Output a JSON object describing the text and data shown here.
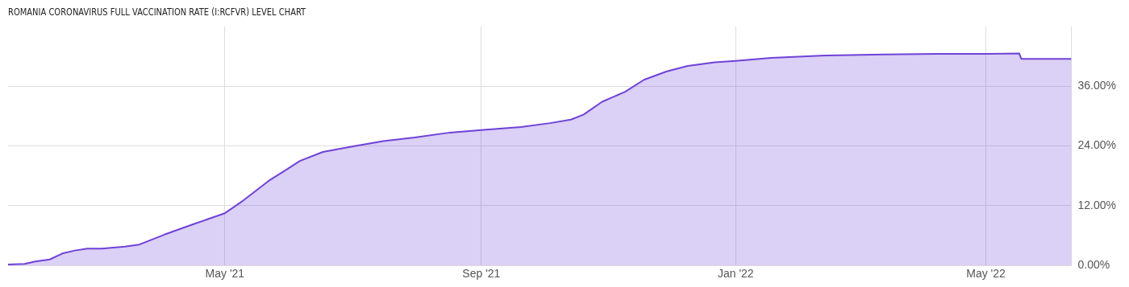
{
  "chart_data": {
    "type": "area",
    "title": "ROMANIA CORONAVIRUS FULL VACCINATION RATE (I:RCFVR) LEVEL CHART",
    "x": [
      "2021-01-17",
      "2021-01-25",
      "2021-01-30",
      "2021-02-06",
      "2021-02-12",
      "2021-02-18",
      "2021-02-24",
      "2021-03-03",
      "2021-03-14",
      "2021-03-21",
      "2021-04-02",
      "2021-04-16",
      "2021-05-01",
      "2021-05-09",
      "2021-05-22",
      "2021-05-30",
      "2021-06-06",
      "2021-06-17",
      "2021-07-01",
      "2021-07-16",
      "2021-07-31",
      "2021-08-17",
      "2021-09-01",
      "2021-09-20",
      "2021-10-04",
      "2021-10-14",
      "2021-10-20",
      "2021-10-29",
      "2021-11-09",
      "2021-11-18",
      "2021-11-29",
      "2021-12-09",
      "2021-12-22",
      "2022-01-01",
      "2022-01-18",
      "2022-02-14",
      "2022-03-13",
      "2022-04-08",
      "2022-05-01",
      "2022-05-17",
      "2022-05-18",
      "2022-06-11"
    ],
    "series": [
      {
        "color": "#6f42d8",
        "values": [
          0.2,
          0.3,
          0.8,
          1.2,
          2.4,
          3.0,
          3.4,
          3.4,
          3.8,
          4.2,
          6.2,
          8.3,
          10.5,
          12.8,
          17.0,
          19.1,
          21.0,
          22.8,
          23.9,
          25.0,
          25.7,
          26.7,
          27.2,
          27.8,
          28.6,
          29.3,
          30.3,
          32.9,
          34.9,
          37.3,
          39.0,
          40.1,
          40.8,
          41.1,
          41.7,
          42.2,
          42.4,
          42.5,
          42.5,
          42.6,
          41.5,
          41.5
        ]
      }
    ],
    "xlim": [
      "2021-01-17",
      "2022-06-11"
    ],
    "xticks": [
      {
        "value": "2021-05-01",
        "label": "May '21"
      },
      {
        "value": "2021-09-01",
        "label": "Sep '21"
      },
      {
        "value": "2022-01-01",
        "label": "Jan '22"
      },
      {
        "value": "2022-05-01",
        "label": "May '22"
      }
    ],
    "ylim": [
      0,
      48
    ],
    "yticks": [
      {
        "value": 0,
        "label": "0.00%"
      },
      {
        "value": 12,
        "label": "12.00%"
      },
      {
        "value": 24,
        "label": "24.00%"
      },
      {
        "value": 36,
        "label": "36.00%"
      }
    ],
    "grid": true,
    "legend": false,
    "marker": "none",
    "line_style": "solid"
  }
}
